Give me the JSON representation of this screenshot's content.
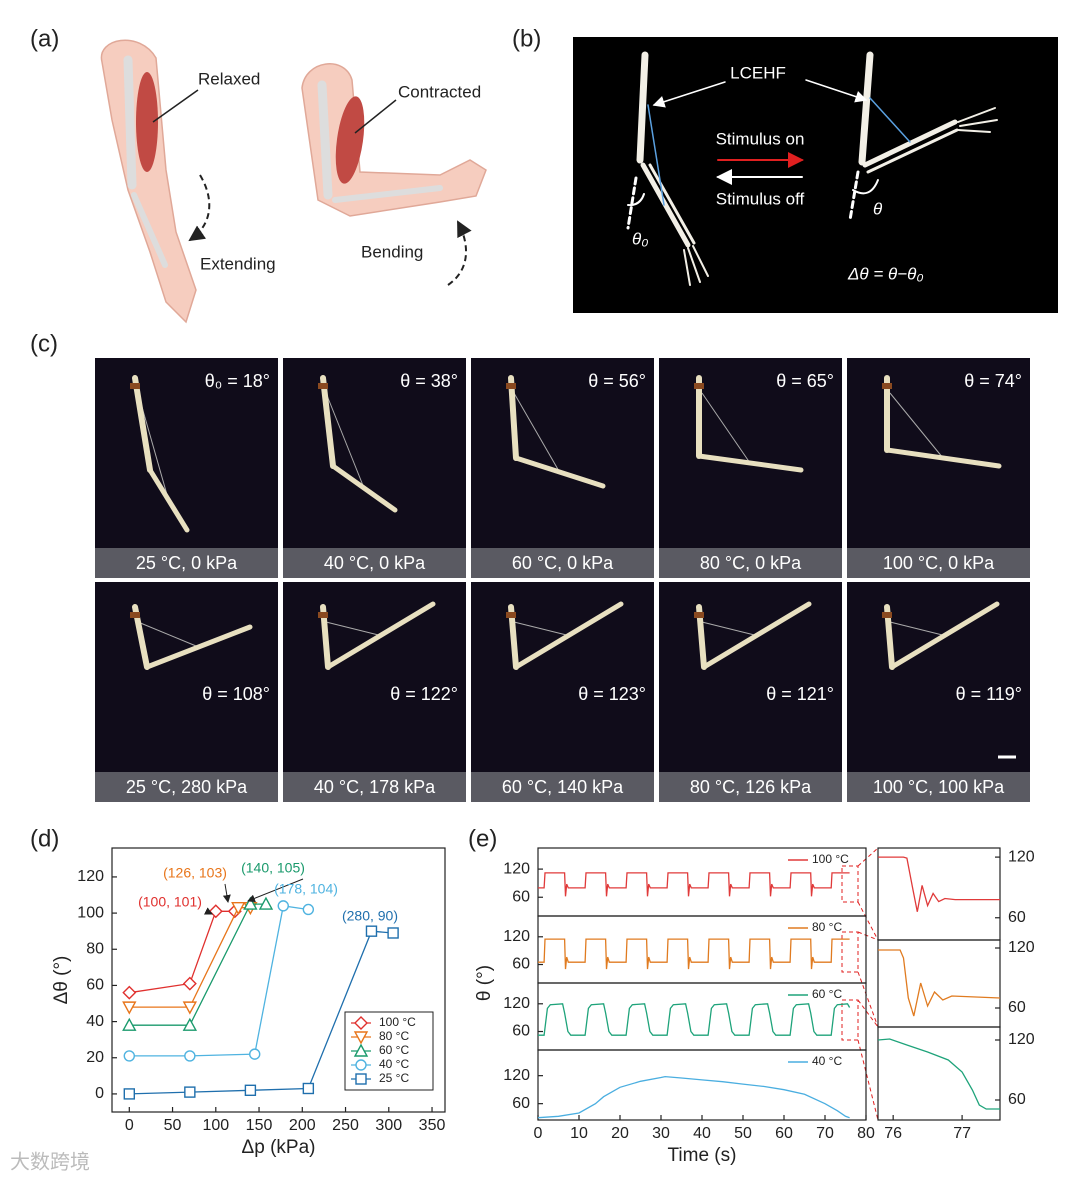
{
  "panel_labels": [
    "(a)",
    "(b)",
    "(c)",
    "(d)",
    "(e)"
  ],
  "a": {
    "relaxed": "Relaxed",
    "contracted": "Contracted",
    "extending": "Extending",
    "bending": "Bending"
  },
  "b": {
    "fiber": "LCEHF",
    "on": "Stimulus on",
    "off": "Stimulus off",
    "theta0": "θ₀",
    "theta": "θ",
    "delta": "Δθ = θ−θ₀"
  },
  "c": {
    "tiles": [
      {
        "angle": "θ₀ = 18°",
        "condition": "25 °C, 0 kPa"
      },
      {
        "angle": "θ = 38°",
        "condition": "40 °C, 0 kPa"
      },
      {
        "angle": "θ = 56°",
        "condition": "60 °C, 0 kPa"
      },
      {
        "angle": "θ = 65°",
        "condition": "80 °C, 0 kPa"
      },
      {
        "angle": "θ = 74°",
        "condition": "100 °C, 0 kPa"
      },
      {
        "angle": "θ = 108°",
        "condition": "25 °C, 280 kPa"
      },
      {
        "angle": "θ = 122°",
        "condition": "40 °C, 178 kPa"
      },
      {
        "angle": "θ = 123°",
        "condition": "60 °C, 140 kPa"
      },
      {
        "angle": "θ = 121°",
        "condition": "80 °C, 126 kPa"
      },
      {
        "angle": "θ = 119°",
        "condition": "100 °C, 100 kPa"
      }
    ]
  },
  "watermark": "大数跨境",
  "chart_data": [
    {
      "type": "line",
      "xlabel": "Δp (kPa)",
      "ylabel": "Δθ (°)",
      "xlim": [
        -20,
        365
      ],
      "ylim": [
        -10,
        136
      ],
      "xticks": [
        0,
        50,
        100,
        150,
        200,
        250,
        300,
        350
      ],
      "yticks": [
        0,
        20,
        40,
        60,
        80,
        100,
        120
      ],
      "legend": "lower right",
      "series": [
        {
          "name": "100 °C",
          "color": "#e0302e",
          "marker": "diamond",
          "x": [
            0,
            70,
            100,
            122
          ],
          "values": [
            56,
            61,
            101,
            101
          ]
        },
        {
          "name": "80 °C",
          "color": "#e8751a",
          "marker": "triangle-down",
          "x": [
            0,
            70,
            126,
            140
          ],
          "values": [
            48,
            48,
            103,
            103
          ]
        },
        {
          "name": "60 °C",
          "color": "#1a9a6c",
          "marker": "triangle-up",
          "x": [
            0,
            70,
            140,
            158
          ],
          "values": [
            38,
            38,
            105,
            105
          ]
        },
        {
          "name": "40 °C",
          "color": "#4fb3e0",
          "marker": "circle",
          "x": [
            0,
            70,
            145,
            178,
            207
          ],
          "values": [
            21,
            21,
            22,
            104,
            102
          ]
        },
        {
          "name": "25 °C",
          "color": "#1f6fad",
          "marker": "square",
          "x": [
            0,
            70,
            140,
            207,
            280,
            305
          ],
          "values": [
            0,
            1,
            2,
            3,
            90,
            89
          ]
        }
      ],
      "annotations": [
        {
          "text": "(100, 101)",
          "color": "#e0302e"
        },
        {
          "text": "(126, 103)",
          "color": "#e8751a"
        },
        {
          "text": "(140, 105)",
          "color": "#1a9a6c"
        },
        {
          "text": "(178, 104)",
          "color": "#4fb3e0"
        },
        {
          "text": "(280, 90)",
          "color": "#1f6fad"
        }
      ]
    },
    {
      "type": "line",
      "xlim": [
        0,
        80
      ],
      "ylim": [
        20,
        165
      ],
      "yticks": [
        60,
        120
      ],
      "series": [
        {
          "name": "100 °C",
          "color": "#e03a3a",
          "x": [
            0,
            1.5,
            1.7,
            6.5,
            6.7,
            7.0,
            7.4,
            11.5,
            11.7,
            16.5,
            16.7,
            17.0,
            17.4,
            21.5,
            21.7,
            26.5,
            26.7,
            27.0,
            27.4,
            31.5,
            31.7,
            36.5,
            36.7,
            37.0,
            37.4,
            41.5,
            41.7,
            46.5,
            46.7,
            47.0,
            47.4,
            51.5,
            51.7,
            56.5,
            56.7,
            57.0,
            57.4,
            61.5,
            61.7,
            66.5,
            66.7,
            67.0,
            67.4,
            71.5,
            71.7,
            76
          ],
          "values": [
            80,
            80,
            112,
            112,
            62,
            88,
            80,
            80,
            112,
            112,
            62,
            88,
            80,
            80,
            112,
            112,
            62,
            88,
            80,
            80,
            112,
            112,
            62,
            88,
            80,
            80,
            112,
            112,
            62,
            88,
            80,
            80,
            112,
            112,
            62,
            88,
            80,
            80,
            112,
            112,
            62,
            88,
            80,
            80,
            112,
            112
          ]
        }
      ]
    },
    {
      "type": "line",
      "xlim": [
        0,
        80
      ],
      "ylim": [
        20,
        165
      ],
      "yticks": [
        60,
        120
      ],
      "ylabel": "θ (°)",
      "series": [
        {
          "name": "80 °C",
          "color": "#e07b20",
          "x": [
            0,
            1.5,
            1.7,
            6.5,
            6.7,
            7.0,
            7.4,
            11.5,
            11.7,
            16.5,
            16.7,
            17.0,
            17.4,
            21.5,
            21.7,
            26.5,
            26.7,
            27.0,
            27.4,
            31.5,
            31.7,
            36.5,
            36.7,
            37.0,
            37.4,
            41.5,
            41.7,
            46.5,
            46.7,
            47.0,
            47.4,
            51.5,
            51.7,
            56.5,
            56.7,
            57.0,
            57.4,
            61.5,
            61.7,
            66.5,
            66.7,
            67.0,
            67.4,
            71.5,
            71.7,
            76
          ],
          "values": [
            65,
            65,
            115,
            115,
            50,
            76,
            65,
            65,
            115,
            115,
            50,
            76,
            65,
            65,
            115,
            115,
            50,
            76,
            65,
            65,
            115,
            115,
            50,
            76,
            65,
            65,
            115,
            115,
            50,
            76,
            65,
            65,
            115,
            115,
            50,
            76,
            65,
            65,
            115,
            115,
            50,
            76,
            65,
            65,
            115,
            115
          ]
        }
      ]
    },
    {
      "type": "line",
      "xlim": [
        0,
        80
      ],
      "ylim": [
        20,
        165
      ],
      "yticks": [
        60,
        120
      ],
      "series": [
        {
          "name": "60 °C",
          "color": "#1ea37a",
          "x": [
            0,
            1.5,
            2.3,
            3,
            6,
            6.5,
            7.3,
            8,
            11.5,
            12.3,
            13,
            16,
            16.5,
            17.3,
            18,
            21.5,
            22.3,
            23,
            26,
            26.5,
            27.3,
            28,
            31.5,
            32.3,
            33,
            36,
            36.5,
            37.3,
            38,
            41.5,
            42.3,
            43,
            46,
            46.5,
            47.3,
            48,
            51.5,
            52.3,
            53,
            56,
            56.5,
            57.3,
            58,
            61.5,
            62.3,
            63,
            66,
            66.5,
            67.3,
            68,
            71.5,
            72.3,
            73,
            75.5,
            76
          ],
          "values": [
            52,
            52,
            110,
            118,
            120,
            100,
            60,
            52,
            52,
            110,
            118,
            120,
            100,
            60,
            52,
            52,
            110,
            118,
            120,
            100,
            60,
            52,
            52,
            110,
            118,
            120,
            100,
            60,
            52,
            52,
            110,
            118,
            120,
            100,
            60,
            52,
            52,
            110,
            118,
            120,
            100,
            60,
            52,
            52,
            110,
            118,
            120,
            100,
            60,
            52,
            52,
            110,
            118,
            120,
            112
          ]
        }
      ]
    },
    {
      "type": "line",
      "xlim": [
        0,
        80
      ],
      "ylim": [
        25,
        175
      ],
      "yticks": [
        60,
        120
      ],
      "xticks": [
        0,
        10,
        20,
        30,
        40,
        50,
        60,
        70,
        80
      ],
      "xlabel": "Time (s)",
      "series": [
        {
          "name": "40 °C",
          "color": "#4aaee0",
          "x": [
            0,
            5,
            10,
            14,
            16,
            20,
            25,
            30,
            31,
            35,
            40,
            45,
            50,
            55,
            60,
            65,
            70,
            73,
            75,
            76
          ],
          "values": [
            30,
            33,
            40,
            60,
            75,
            95,
            108,
            116,
            118,
            115,
            111,
            107,
            102,
            97,
            90,
            80,
            60,
            45,
            33,
            30
          ]
        }
      ]
    },
    {
      "type": "line",
      "xlim": [
        75.78,
        77.55
      ],
      "ylim": [
        38,
        129
      ],
      "yticks": [
        60,
        120
      ],
      "series": [
        {
          "color": "#e03a3a",
          "x": [
            75.78,
            76.15,
            76.2,
            76.28,
            76.35,
            76.42,
            76.5,
            76.58,
            76.66,
            76.75,
            76.9,
            77.55
          ],
          "values": [
            120,
            120,
            119,
            90,
            66,
            92,
            72,
            84,
            76,
            79,
            78,
            78
          ]
        }
      ]
    },
    {
      "type": "line",
      "xlim": [
        75.78,
        77.55
      ],
      "ylim": [
        41,
        128
      ],
      "yticks": [
        60,
        120
      ],
      "series": [
        {
          "color": "#e07b20",
          "x": [
            75.78,
            76.1,
            76.15,
            76.22,
            76.3,
            76.4,
            76.5,
            76.6,
            76.72,
            76.85,
            77.55
          ],
          "values": [
            118,
            118,
            110,
            70,
            52,
            85,
            62,
            76,
            68,
            72,
            70
          ]
        }
      ]
    },
    {
      "type": "line",
      "xlim": [
        75.78,
        77.55
      ],
      "ylim": [
        40,
        133
      ],
      "yticks": [
        60,
        120
      ],
      "xticks": [
        76,
        77
      ],
      "series": [
        {
          "color": "#1ea37a",
          "x": [
            75.78,
            75.95,
            76.2,
            76.5,
            76.8,
            77.0,
            77.15,
            77.25,
            77.35,
            77.55
          ],
          "values": [
            120,
            121,
            115,
            108,
            100,
            88,
            70,
            55,
            51,
            51
          ]
        }
      ]
    }
  ]
}
